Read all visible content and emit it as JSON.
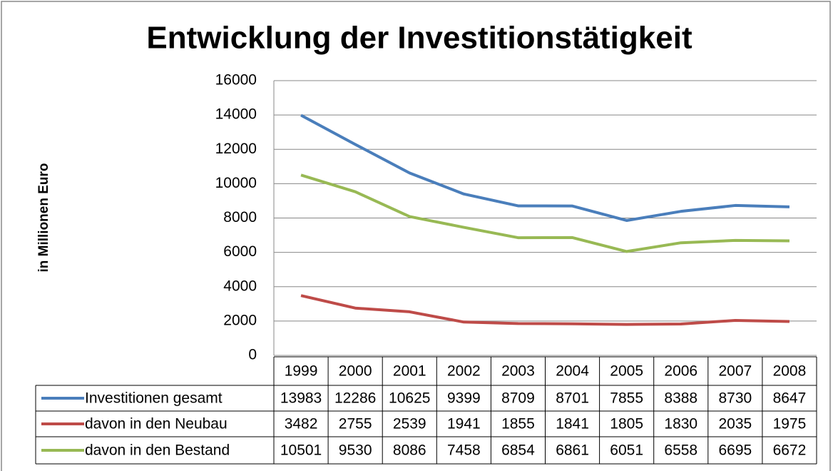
{
  "chart_data": {
    "type": "line",
    "title": "Entwicklung der Investitionstätigkeit",
    "ylabel": "in Millionen Euro",
    "categories": [
      "1999",
      "2000",
      "2001",
      "2002",
      "2003",
      "2004",
      "2005",
      "2006",
      "2007",
      "2008"
    ],
    "series": [
      {
        "name": "Investitionen gesamt",
        "color": "#4a7ebb",
        "values": [
          13983,
          12286,
          10625,
          9399,
          8709,
          8701,
          7855,
          8388,
          8730,
          8647
        ]
      },
      {
        "name": "davon in den Neubau",
        "color": "#be4b48",
        "values": [
          3482,
          2755,
          2539,
          1941,
          1855,
          1841,
          1805,
          1830,
          2035,
          1975
        ]
      },
      {
        "name": "davon in den Bestand",
        "color": "#98b954",
        "values": [
          10501,
          9530,
          8086,
          7458,
          6854,
          6861,
          6051,
          6558,
          6695,
          6672
        ]
      }
    ],
    "ylim": [
      0,
      16000
    ],
    "yticks": [
      0,
      2000,
      4000,
      6000,
      8000,
      10000,
      12000,
      14000,
      16000
    ],
    "grid": true
  }
}
